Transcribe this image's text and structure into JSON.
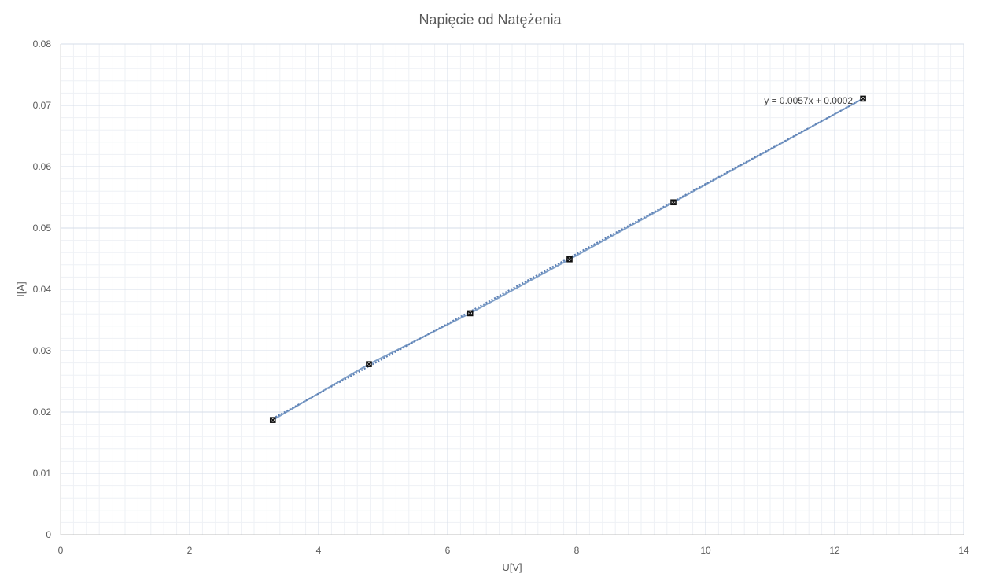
{
  "chart_data": {
    "type": "scatter",
    "title": "Napięcie od Natężenia",
    "xlabel": "U[V]",
    "ylabel": "I[A]",
    "xlim": [
      0,
      14
    ],
    "ylim": [
      0,
      0.08
    ],
    "x_ticks": [
      "0",
      "2",
      "4",
      "6",
      "8",
      "10",
      "12",
      "14"
    ],
    "y_ticks": [
      "0",
      "0.01",
      "0.02",
      "0.03",
      "0.04",
      "0.05",
      "0.06",
      "0.07",
      "0.08"
    ],
    "grid": {
      "major": true,
      "minor": true
    },
    "series": [
      {
        "x": [
          3.29,
          4.78,
          6.35,
          7.89,
          9.5,
          12.44
        ],
        "y": [
          0.0187,
          0.0278,
          0.0361,
          0.0449,
          0.0542,
          0.0711
        ],
        "connected": true,
        "color": "#7f9fc8"
      }
    ],
    "trendline": {
      "type": "linear",
      "slope": 0.0057,
      "intercept": 0.0002,
      "equation": "y = 0.0057x + 0.0002",
      "style": "dotted",
      "color": "#5b7fb4"
    }
  }
}
